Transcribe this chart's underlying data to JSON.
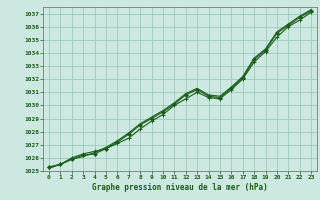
{
  "title": "Graphe pression niveau de la mer (hPa)",
  "bg_color": "#cce8e0",
  "grid_color": "#99ccbb",
  "line_color": "#1a5c1a",
  "xlim": [
    -0.5,
    23.5
  ],
  "ylim": [
    1025,
    1037.5
  ],
  "xticks": [
    0,
    1,
    2,
    3,
    4,
    5,
    6,
    7,
    8,
    9,
    10,
    11,
    12,
    13,
    14,
    15,
    16,
    17,
    18,
    19,
    20,
    21,
    22,
    23
  ],
  "yticks": [
    1025,
    1026,
    1027,
    1028,
    1029,
    1030,
    1031,
    1032,
    1033,
    1034,
    1035,
    1036,
    1037
  ],
  "hours": [
    0,
    1,
    2,
    3,
    4,
    5,
    6,
    7,
    8,
    9,
    10,
    11,
    12,
    13,
    14,
    15,
    16,
    17,
    18,
    19,
    20,
    21,
    22,
    23
  ],
  "series1": [
    1025.3,
    1025.5,
    1026.0,
    1026.3,
    1026.5,
    1026.7,
    1027.1,
    1027.5,
    1028.2,
    1028.8,
    1029.3,
    1030.0,
    1030.5,
    1031.0,
    1030.6,
    1030.5,
    1031.2,
    1032.0,
    1033.3,
    1034.1,
    1035.2,
    1036.0,
    1036.5,
    1037.1
  ],
  "series2": [
    1025.3,
    1025.5,
    1025.9,
    1026.2,
    1026.3,
    1026.7,
    1027.2,
    1027.8,
    1028.5,
    1029.0,
    1029.5,
    1030.1,
    1030.8,
    1031.2,
    1030.7,
    1030.6,
    1031.3,
    1032.1,
    1033.5,
    1034.2,
    1035.5,
    1036.1,
    1036.7,
    1037.2
  ],
  "series3": [
    1025.2,
    1025.5,
    1025.9,
    1026.1,
    1026.4,
    1026.8,
    1027.3,
    1027.9,
    1028.6,
    1029.1,
    1029.6,
    1030.2,
    1030.9,
    1031.3,
    1030.8,
    1030.7,
    1031.4,
    1032.2,
    1033.6,
    1034.3,
    1035.6,
    1036.2,
    1036.8,
    1037.3
  ]
}
